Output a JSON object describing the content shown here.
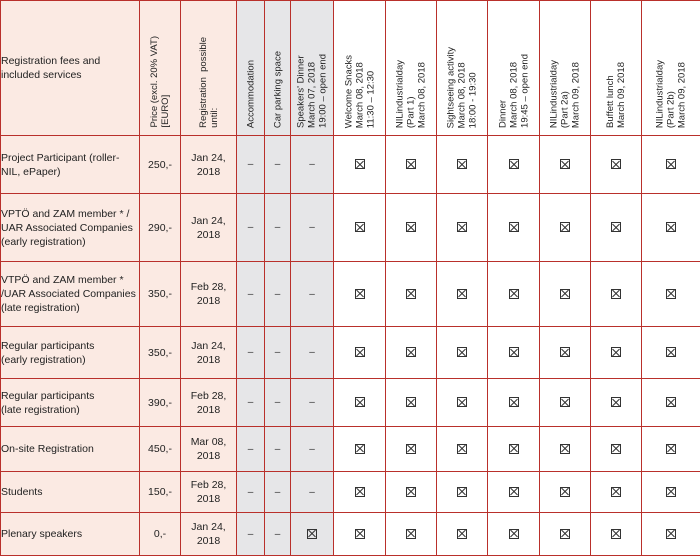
{
  "table": {
    "corner_label": "Registration fees and included services",
    "price_header": "Price (excl. 20% VAT)\n[EURO]",
    "deadline_header": "Registration  possible\nuntil:",
    "service_headers": [
      "Accommodation",
      "Car parking space",
      "Speakers' Dinner\nMarch 07, 2018\n19:00 – open end",
      "Welcome Snacks\nMarch 08, 2018\n11:30 – 12:30",
      "NILindustrialday\n(Part 1)\nMarch 08, 2018",
      "Sightseeing activity\nMarch 08, 2018\n18:00 - 19:30",
      "Dinner\nMarch 08, 2018\n19:45 – open end",
      "NILindustrialday\n(Part 2a)\nMarch 09, 2018",
      "Buffett lunch\nMarch 09, 2018",
      "NILindustrialday\n(Part 2b)\nMarch 09, 2018"
    ],
    "dash_symbol": "–",
    "rows": [
      {
        "category": "Project Participant (roller-\nNIL, ePaper)",
        "price": "250,-",
        "deadline": "Jan 24,\n2018",
        "services": [
          "dash",
          "dash",
          "dash",
          "check",
          "check",
          "check",
          "check",
          "check",
          "check",
          "check"
        ]
      },
      {
        "category": "VPTÖ and ZAM member * /\nUAR Associated Companies\n(early registration)",
        "price": "290,-",
        "deadline": "Jan 24,\n2018",
        "services": [
          "dash",
          "dash",
          "dash",
          "check",
          "check",
          "check",
          "check",
          "check",
          "check",
          "check"
        ]
      },
      {
        "category": "VTPÖ and ZAM member *\n/UAR Associated Companies\n(late registration)",
        "price": "350,-",
        "deadline": "Feb 28,\n2018",
        "services": [
          "dash",
          "dash",
          "dash",
          "check",
          "check",
          "check",
          "check",
          "check",
          "check",
          "check"
        ]
      },
      {
        "category": "Regular participants\n(early registration)",
        "price": "350,-",
        "deadline": "Jan 24,\n2018",
        "services": [
          "dash",
          "dash",
          "dash",
          "check",
          "check",
          "check",
          "check",
          "check",
          "check",
          "check"
        ]
      },
      {
        "category": "Regular participants\n(late registration)",
        "price": "390,-",
        "deadline": "Feb 28,\n2018",
        "services": [
          "dash",
          "dash",
          "dash",
          "check",
          "check",
          "check",
          "check",
          "check",
          "check",
          "check"
        ]
      },
      {
        "category": "On-site Registration",
        "price": "450,-",
        "deadline": "Mar 08,\n2018",
        "services": [
          "dash",
          "dash",
          "dash",
          "check",
          "check",
          "check",
          "check",
          "check",
          "check",
          "check"
        ]
      },
      {
        "category": "Students",
        "price": "150,-",
        "deadline": "Feb 28,\n2018",
        "services": [
          "dash",
          "dash",
          "dash",
          "check",
          "check",
          "check",
          "check",
          "check",
          "check",
          "check"
        ]
      },
      {
        "category": "Plenary speakers",
        "price": "0,-",
        "deadline": "Jan 24,\n2018",
        "services": [
          "dash",
          "dash",
          "check",
          "check",
          "check",
          "check",
          "check",
          "check",
          "check",
          "check"
        ]
      }
    ]
  }
}
